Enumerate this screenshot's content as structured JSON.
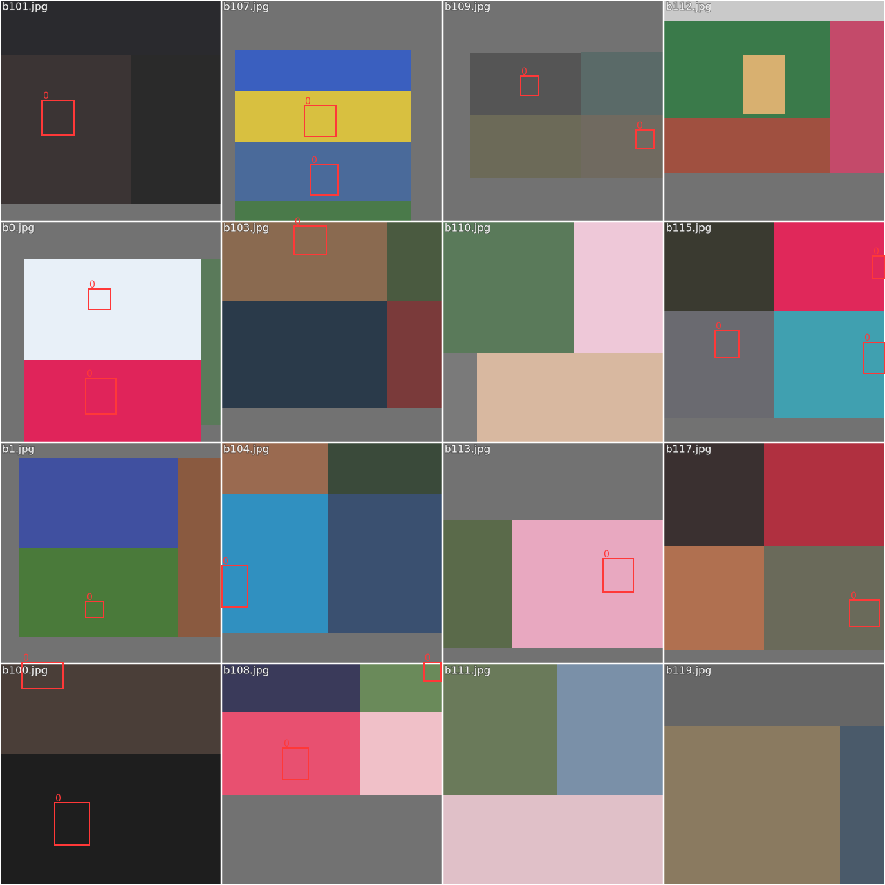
{
  "tiles": [
    {
      "filename": "b101.jpg",
      "boxes": [
        {
          "label": "0"
        }
      ]
    },
    {
      "filename": "b107.jpg",
      "boxes": [
        {
          "label": "0"
        },
        {
          "label": "0"
        }
      ]
    },
    {
      "filename": "b109.jpg",
      "boxes": [
        {
          "label": "0"
        },
        {
          "label": "0"
        }
      ]
    },
    {
      "filename": "b112.jpg",
      "boxes": []
    },
    {
      "filename": "b0.jpg",
      "boxes": [
        {
          "label": "0"
        },
        {
          "label": "0"
        }
      ]
    },
    {
      "filename": "b103.jpg",
      "boxes": [
        {
          "label": "0"
        }
      ]
    },
    {
      "filename": "b110.jpg",
      "boxes": []
    },
    {
      "filename": "b115.jpg",
      "boxes": [
        {
          "label": "0"
        },
        {
          "label": "0"
        },
        {
          "label": "0"
        }
      ]
    },
    {
      "filename": "b1.jpg",
      "boxes": [
        {
          "label": "0"
        }
      ]
    },
    {
      "filename": "b104.jpg",
      "boxes": [
        {
          "label": "0"
        }
      ]
    },
    {
      "filename": "b113.jpg",
      "boxes": [
        {
          "label": "0"
        }
      ]
    },
    {
      "filename": "b117.jpg",
      "boxes": [
        {
          "label": "0"
        }
      ]
    },
    {
      "filename": "b100.jpg",
      "boxes": [
        {
          "label": "0"
        },
        {
          "label": "0"
        }
      ]
    },
    {
      "filename": "b108.jpg",
      "boxes": [
        {
          "label": "0"
        },
        {
          "label": "0"
        }
      ]
    },
    {
      "filename": "b111.jpg",
      "boxes": []
    },
    {
      "filename": "b119.jpg",
      "boxes": []
    }
  ]
}
